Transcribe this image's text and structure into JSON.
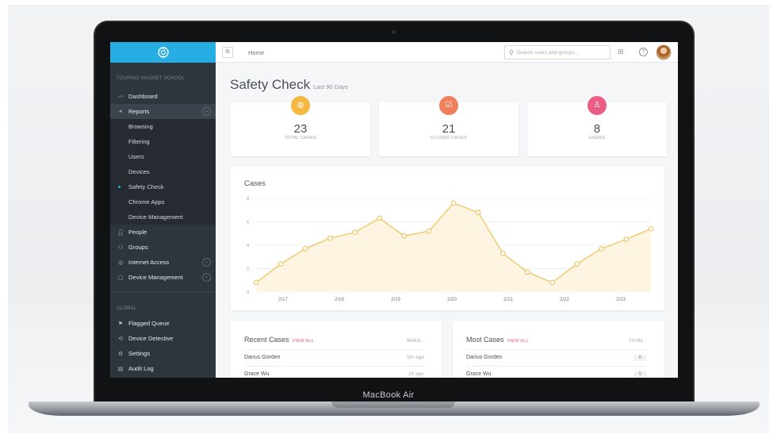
{
  "device": {
    "brand": "MacBook Air"
  },
  "sidebar": {
    "org": "TOURING MAGNET SCHOOL",
    "items": [
      {
        "label": "Dashboard",
        "icon": "line-chart-icon"
      },
      {
        "label": "Reports",
        "icon": "pie-chart-icon"
      }
    ],
    "reports_sub": [
      "Browsing",
      "Filtering",
      "Users",
      "Devices",
      "Safety Check",
      "Chrome Apps",
      "Device Management"
    ],
    "items2": [
      {
        "label": "People",
        "icon": "person-icon"
      },
      {
        "label": "Groups",
        "icon": "group-icon"
      },
      {
        "label": "Internet Access",
        "icon": "globe-icon"
      },
      {
        "label": "Device Management",
        "icon": "device-icon"
      }
    ],
    "global_label": "GLOBAL",
    "global_items": [
      {
        "label": "Flagged Queue",
        "icon": "flag-icon"
      },
      {
        "label": "Device Detective",
        "icon": "detective-icon"
      },
      {
        "label": "Settings",
        "icon": "gear-icon"
      },
      {
        "label": "Audit Log",
        "icon": "log-icon"
      }
    ]
  },
  "topbar": {
    "breadcrumb": "Home",
    "search_placeholder": "Search users and groups..."
  },
  "page": {
    "title": "Safety Check",
    "subtitle": "Last 90 Days"
  },
  "stats": [
    {
      "value": "23",
      "label": "TOTAL CASES",
      "color": "#f5b942",
      "icon": "globe-icon"
    },
    {
      "value": "21",
      "label": "CLOSED CASES",
      "color": "#ef7f5b",
      "icon": "check-icon"
    },
    {
      "value": "8",
      "label": "USERS",
      "color": "#ec5d86",
      "icon": "user-icon"
    }
  ],
  "chart_data": {
    "type": "area",
    "title": "Cases",
    "x_ticks": [
      "2/17",
      "2/18",
      "2/19",
      "2/20",
      "2/21",
      "2/22",
      "2/23"
    ],
    "y_ticks": [
      0,
      2,
      4,
      6,
      8
    ],
    "ylim": [
      0,
      8
    ],
    "values": [
      0.8,
      2.4,
      3.7,
      4.6,
      5.1,
      6.3,
      4.8,
      5.2,
      7.6,
      6.8,
      3.3,
      1.7,
      0.8,
      2.4,
      3.7,
      4.5,
      5.4
    ],
    "color": "#f2c86a"
  },
  "recent_cases": {
    "title": "Recent Cases",
    "link": "VIEW ALL",
    "column": "WHEN",
    "rows": [
      {
        "name": "Darius Gorden",
        "when": "5m ago"
      },
      {
        "name": "Grace Wu",
        "when": "1h ago"
      }
    ]
  },
  "most_cases": {
    "title": "Most Cases",
    "link": "VIEW ALL",
    "column": "TOTAL",
    "rows": [
      {
        "name": "Darius Gorden",
        "total": "6"
      },
      {
        "name": "Grace Wu",
        "total": "5"
      }
    ]
  }
}
